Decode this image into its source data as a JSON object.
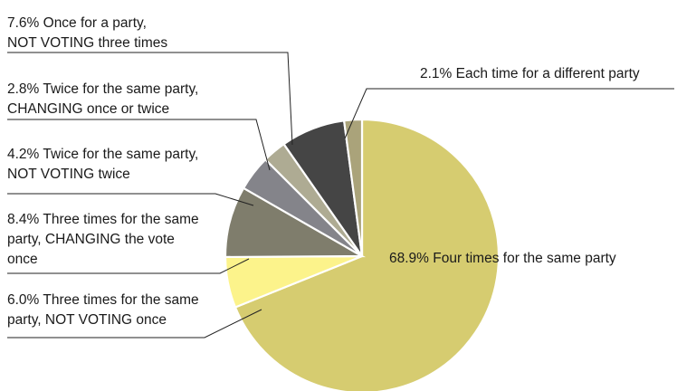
{
  "chart_data": {
    "type": "pie",
    "title": "",
    "start_angle_deg": 0,
    "direction": "clockwise",
    "slices": [
      {
        "value": 68.9,
        "pct_label": "68.9%",
        "lines": [
          "Four times for the same party"
        ],
        "color": "#d6cc70",
        "label_inside": true
      },
      {
        "value": 6.0,
        "pct_label": "6.0%",
        "lines": [
          "Three times for the same",
          "party,  NOT VOTING once"
        ],
        "color": "#fcf38b",
        "label_inside": false
      },
      {
        "value": 8.4,
        "pct_label": "8.4%",
        "lines": [
          "Three times for the same",
          "party, CHANGING the vote",
          "once"
        ],
        "color": "#7f7d6c",
        "label_inside": false
      },
      {
        "value": 4.2,
        "pct_label": "4.2%",
        "lines": [
          "Twice for the same party,",
          "NOT VOTING twice"
        ],
        "color": "#84848a",
        "label_inside": false
      },
      {
        "value": 2.8,
        "pct_label": "2.8%",
        "lines": [
          "Twice for the same party,",
          "CHANGING once or twice"
        ],
        "color": "#aeab93",
        "label_inside": false
      },
      {
        "value": 7.6,
        "pct_label": "7.6%",
        "lines": [
          "Once for a party,",
          "NOT VOTING three times"
        ],
        "color": "#454545",
        "label_inside": false
      },
      {
        "value": 2.1,
        "pct_label": "2.1%",
        "lines": [
          "Each time for a different party"
        ],
        "color": "#aaa37a",
        "label_inside": false
      }
    ]
  }
}
